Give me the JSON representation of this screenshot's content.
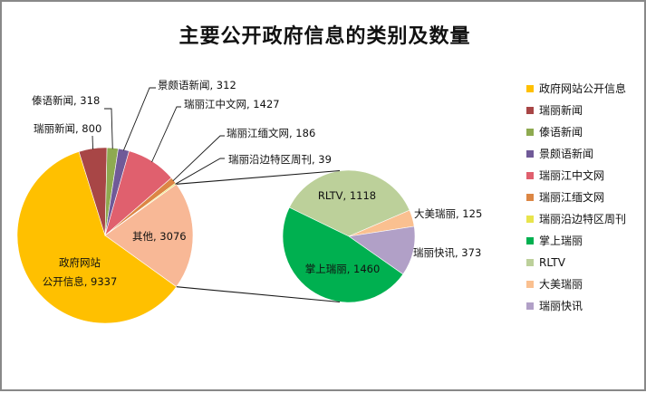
{
  "chart_data": {
    "type": "pie",
    "subtype": "pie-of-pie",
    "title": "主要公开政府信息的类别及数量",
    "legend_position": "right",
    "primary": {
      "categories": [
        "政府网站公开信息",
        "瑞丽新闻",
        "傣语新闻",
        "景颇语新闻",
        "瑞丽江中文网",
        "瑞丽江缅文网",
        "瑞丽沿边特区周刊",
        "其他"
      ],
      "values": [
        9337,
        800,
        318,
        312,
        1427,
        186,
        39,
        3076
      ],
      "colors": [
        "#FFC000",
        "#A84646",
        "#8EAA50",
        "#705A98",
        "#E0606E",
        "#DC8644",
        "#E8E44C",
        "#F8B896"
      ]
    },
    "secondary": {
      "categories": [
        "掌上瑞丽",
        "瑞丽快讯",
        "大美瑞丽",
        "RLTV"
      ],
      "values": [
        1460,
        373,
        125,
        1118
      ],
      "colors": [
        "#00B050",
        "#B1A0C7",
        "#FAC090",
        "#BCD09A"
      ]
    },
    "data_labels": [
      {
        "text": "政府网站",
        "text2": "公开信息, 9337"
      },
      {
        "text": "瑞丽新闻, 800"
      },
      {
        "text": "傣语新闻, 318"
      },
      {
        "text": "景颇语新闻, 312"
      },
      {
        "text": "瑞丽江中文网, 1427"
      },
      {
        "text": "瑞丽江缅文网, 186"
      },
      {
        "text": "瑞丽沿边特区周刊, 39"
      },
      {
        "text": "其他, 3076"
      },
      {
        "text": "掌上瑞丽, 1460"
      },
      {
        "text": "RLTV, 1118"
      },
      {
        "text": "大美瑞丽, 125"
      },
      {
        "text": "瑞丽快讯, 373"
      }
    ]
  },
  "legend": {
    "items": [
      {
        "label": "政府网站公开信息",
        "color": "#FFC000"
      },
      {
        "label": "瑞丽新闻",
        "color": "#A84646"
      },
      {
        "label": "傣语新闻",
        "color": "#8EAA50"
      },
      {
        "label": "景颇语新闻",
        "color": "#705A98"
      },
      {
        "label": "瑞丽江中文网",
        "color": "#E0606E"
      },
      {
        "label": "瑞丽江缅文网",
        "color": "#DC8644"
      },
      {
        "label": "瑞丽沿边特区周刊",
        "color": "#E8E44C"
      },
      {
        "label": "掌上瑞丽",
        "color": "#00B050"
      },
      {
        "label": "RLTV",
        "color": "#BCD09A"
      },
      {
        "label": "大美瑞丽",
        "color": "#FAC090"
      },
      {
        "label": "瑞丽快讯",
        "color": "#B1A0C7"
      }
    ]
  }
}
